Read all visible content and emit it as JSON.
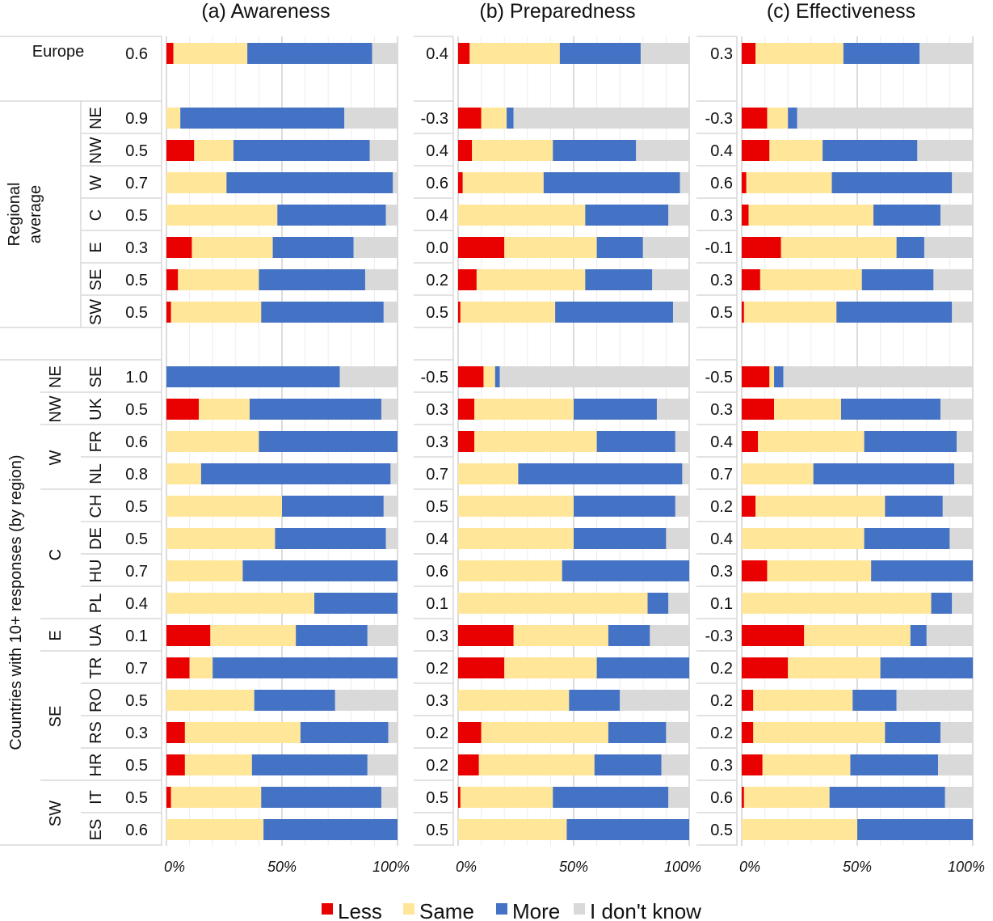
{
  "chart_data": {
    "type": "bar",
    "orientation": "horizontal",
    "stacked": "percent",
    "legend": {
      "position": "bottom",
      "entries": [
        {
          "name": "Less",
          "color": "#e90000"
        },
        {
          "name": "Same",
          "color": "#ffe699"
        },
        {
          "name": "More",
          "color": "#4472c4"
        },
        {
          "name": "I don't know",
          "color": "#d9d9d9"
        }
      ]
    },
    "xaxis": {
      "ticks": [
        "0%",
        "50%",
        "100%"
      ],
      "range": [
        0,
        100
      ],
      "grid": true,
      "minor_grid_step": 10
    },
    "row_groups": [
      {
        "label": "",
        "rows": [
          {
            "group": "",
            "label": "Europe"
          }
        ]
      },
      {
        "label": "Regional average",
        "rows": [
          {
            "group": "",
            "label": "NE"
          },
          {
            "group": "",
            "label": "NW"
          },
          {
            "group": "",
            "label": "W"
          },
          {
            "group": "",
            "label": "C"
          },
          {
            "group": "",
            "label": "E"
          },
          {
            "group": "",
            "label": "SE"
          },
          {
            "group": "",
            "label": "SW"
          }
        ]
      },
      {
        "label": "Countries with 10+ responses (by region)",
        "rows": [
          {
            "group": "NE",
            "label": "SE"
          },
          {
            "group": "NW",
            "label": "UK"
          },
          {
            "group": "W",
            "label": "FR"
          },
          {
            "group": "W",
            "label": "NL"
          },
          {
            "group": "C",
            "label": "CH"
          },
          {
            "group": "C",
            "label": "DE"
          },
          {
            "group": "C",
            "label": "HU"
          },
          {
            "group": "C",
            "label": "PL"
          },
          {
            "group": "E",
            "label": "UA"
          },
          {
            "group": "SE",
            "label": "TR"
          },
          {
            "group": "SE",
            "label": "RO"
          },
          {
            "group": "SE",
            "label": "RS"
          },
          {
            "group": "SE",
            "label": "HR"
          },
          {
            "group": "SW",
            "label": "IT"
          },
          {
            "group": "SW",
            "label": "ES"
          }
        ]
      }
    ],
    "panels": [
      {
        "title": "(a) Awareness",
        "scores": [
          "0.6",
          "0.9",
          "0.5",
          "0.7",
          "0.5",
          "0.3",
          "0.5",
          "0.5",
          "1.0",
          "0.5",
          "0.6",
          "0.8",
          "0.5",
          "0.5",
          "0.7",
          "0.4",
          "0.1",
          "0.7",
          "0.5",
          "0.3",
          "0.5",
          "0.5",
          "0.6"
        ],
        "values": [
          [
            3,
            32,
            54,
            11
          ],
          [
            0,
            6,
            71,
            23
          ],
          [
            12,
            17,
            59,
            12
          ],
          [
            0,
            26,
            72,
            2
          ],
          [
            0,
            48,
            47,
            5
          ],
          [
            11,
            35,
            35,
            19
          ],
          [
            5,
            35,
            46,
            14
          ],
          [
            2,
            39,
            53,
            6
          ],
          [
            0,
            0,
            75,
            25
          ],
          [
            14,
            22,
            57,
            7
          ],
          [
            0,
            40,
            60,
            0
          ],
          [
            0,
            15,
            82,
            3
          ],
          [
            0,
            50,
            44,
            6
          ],
          [
            0,
            47,
            48,
            5
          ],
          [
            0,
            33,
            67,
            0
          ],
          [
            0,
            64,
            36,
            0
          ],
          [
            19,
            37,
            31,
            13
          ],
          [
            10,
            10,
            80,
            0
          ],
          [
            0,
            38,
            35,
            27
          ],
          [
            8,
            50,
            38,
            4
          ],
          [
            8,
            29,
            50,
            13
          ],
          [
            2,
            39,
            52,
            7
          ],
          [
            0,
            42,
            58,
            0
          ]
        ]
      },
      {
        "title": "(b) Preparedness",
        "scores": [
          "0.4",
          "-0.3",
          "0.4",
          "0.6",
          "0.4",
          "0.0",
          "0.2",
          "0.5",
          "-0.5",
          "0.3",
          "0.3",
          "0.7",
          "0.5",
          "0.4",
          "0.6",
          "0.1",
          "0.3",
          "0.2",
          "0.3",
          "0.2",
          "0.2",
          "0.5",
          "0.5"
        ],
        "values": [
          [
            5,
            39,
            35,
            21
          ],
          [
            10,
            11,
            3,
            76
          ],
          [
            6,
            35,
            36,
            23
          ],
          [
            2,
            35,
            59,
            4
          ],
          [
            0,
            55,
            36,
            9
          ],
          [
            20,
            40,
            20,
            20
          ],
          [
            8,
            47,
            29,
            16
          ],
          [
            1,
            41,
            51,
            7
          ],
          [
            11,
            5,
            2,
            82
          ],
          [
            7,
            43,
            36,
            14
          ],
          [
            7,
            53,
            34,
            6
          ],
          [
            0,
            26,
            71,
            3
          ],
          [
            0,
            50,
            44,
            6
          ],
          [
            0,
            50,
            40,
            10
          ],
          [
            0,
            45,
            55,
            0
          ],
          [
            0,
            82,
            9,
            9
          ],
          [
            24,
            41,
            18,
            17
          ],
          [
            20,
            40,
            40,
            0
          ],
          [
            0,
            48,
            22,
            30
          ],
          [
            10,
            55,
            25,
            10
          ],
          [
            9,
            50,
            29,
            12
          ],
          [
            1,
            40,
            50,
            9
          ],
          [
            0,
            47,
            53,
            0
          ]
        ]
      },
      {
        "title": "(c) Effectiveness",
        "scores": [
          "0.3",
          "-0.3",
          "0.4",
          "0.6",
          "0.3",
          "-0.1",
          "0.3",
          "0.5",
          "-0.5",
          "0.3",
          "0.4",
          "0.7",
          "0.2",
          "0.4",
          "0.3",
          "0.1",
          "-0.3",
          "0.2",
          "0.2",
          "0.2",
          "0.3",
          "0.6",
          "0.5"
        ],
        "values": [
          [
            6,
            38,
            33,
            23
          ],
          [
            11,
            9,
            4,
            76
          ],
          [
            12,
            23,
            41,
            24
          ],
          [
            2,
            37,
            52,
            9
          ],
          [
            3,
            54,
            29,
            14
          ],
          [
            17,
            50,
            12,
            21
          ],
          [
            8,
            44,
            31,
            17
          ],
          [
            1,
            40,
            50,
            9
          ],
          [
            12,
            2,
            4,
            82
          ],
          [
            14,
            29,
            43,
            14
          ],
          [
            7,
            46,
            40,
            7
          ],
          [
            0,
            31,
            61,
            8
          ],
          [
            6,
            56,
            25,
            13
          ],
          [
            0,
            53,
            37,
            10
          ],
          [
            11,
            45,
            44,
            0
          ],
          [
            0,
            82,
            9,
            9
          ],
          [
            27,
            46,
            7,
            20
          ],
          [
            20,
            40,
            40,
            0
          ],
          [
            5,
            43,
            19,
            33
          ],
          [
            5,
            57,
            24,
            14
          ],
          [
            9,
            38,
            38,
            15
          ],
          [
            1,
            37,
            50,
            12
          ],
          [
            0,
            50,
            50,
            0
          ]
        ]
      }
    ]
  }
}
